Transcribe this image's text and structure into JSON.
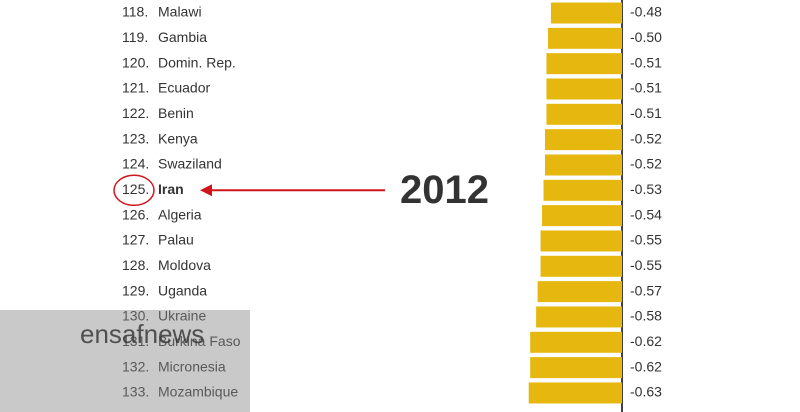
{
  "chart_data": {
    "type": "bar",
    "orientation": "horizontal",
    "ranks": [
      "118.",
      "119.",
      "120.",
      "121.",
      "122.",
      "123.",
      "124.",
      "125.",
      "126.",
      "127.",
      "128.",
      "129.",
      "130.",
      "131.",
      "132.",
      "133."
    ],
    "categories": [
      "Malawi",
      "Gambia",
      "Domin. Rep.",
      "Ecuador",
      "Benin",
      "Kenya",
      "Swaziland",
      "Iran",
      "Algeria",
      "Palau",
      "Moldova",
      "Uganda",
      "Ukraine",
      "Burkina Faso",
      "Micronesia",
      "Mozambique"
    ],
    "values": [
      -0.48,
      -0.5,
      -0.51,
      -0.51,
      -0.51,
      -0.52,
      -0.52,
      -0.53,
      -0.54,
      -0.55,
      -0.55,
      -0.57,
      -0.58,
      -0.62,
      -0.62,
      -0.63
    ],
    "value_labels": [
      "-0.48",
      "-0.50",
      "-0.51",
      "-0.51",
      "-0.51",
      "-0.52",
      "-0.52",
      "-0.53",
      "-0.54",
      "-0.55",
      "-0.55",
      "-0.57",
      "-0.58",
      "-0.62",
      "-0.62",
      "-0.63"
    ],
    "color": "#e6b80f",
    "highlight_index": 7,
    "highlight_color": "#e0552a",
    "xlim": [
      -4.2,
      0
    ],
    "annotation": "2012",
    "annotation_color": "#d0161c",
    "watermark": "ensafnews"
  }
}
